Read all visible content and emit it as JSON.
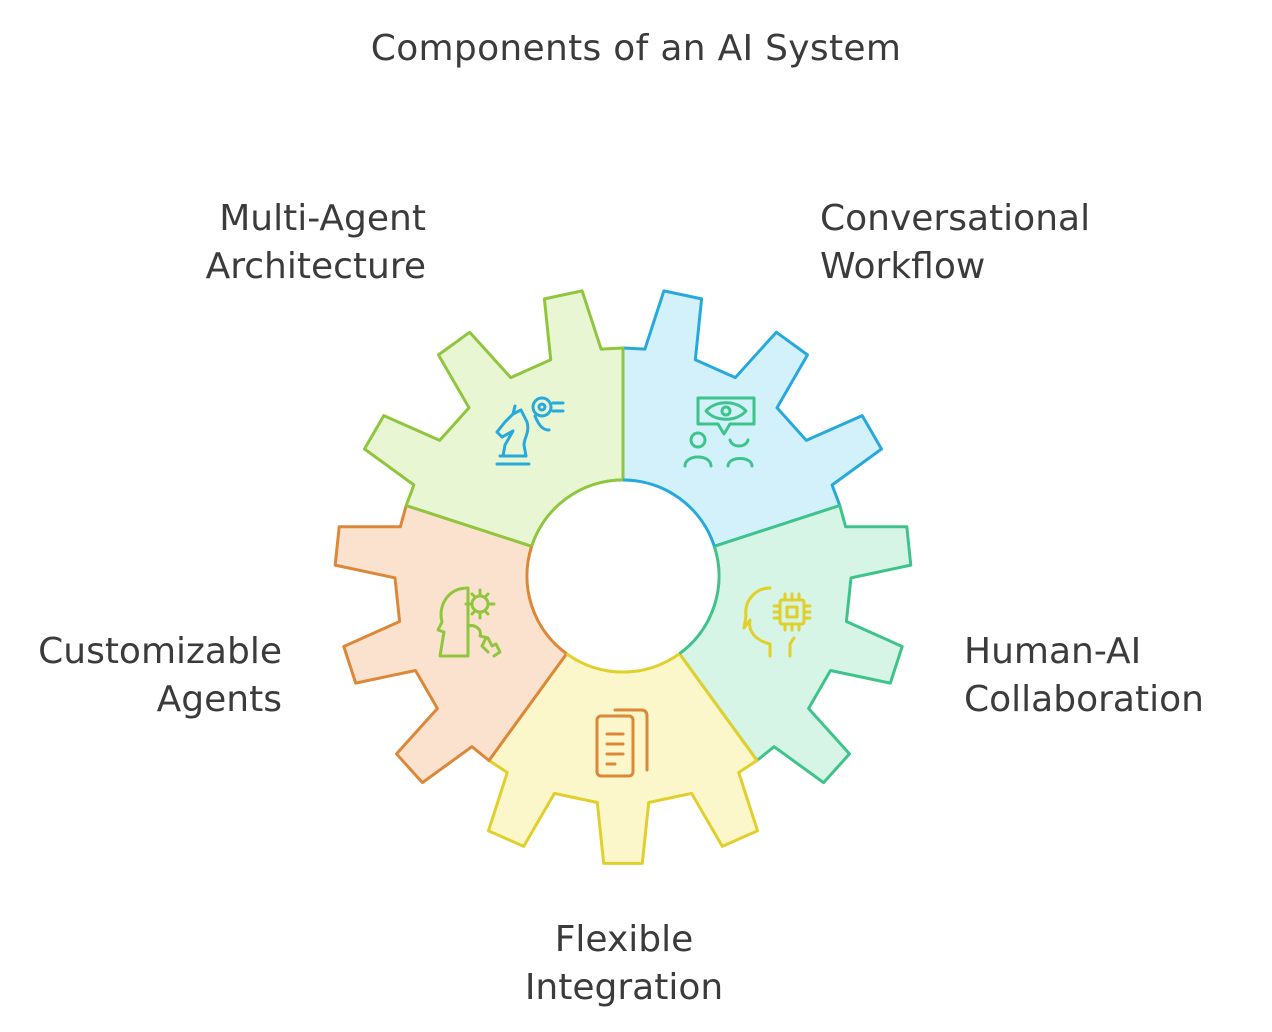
{
  "title": "Components of an AI System",
  "segments": [
    {
      "id": "multi-agent",
      "label_lines": [
        "Multi-Agent",
        "Architecture"
      ],
      "fill": "#d3f1fb",
      "stroke": "#27a9dc",
      "icon": "chess-knight-icon"
    },
    {
      "id": "conversational",
      "label_lines": [
        "Conversational",
        "Workflow"
      ],
      "fill": "#d6f5e6",
      "stroke": "#3ec48b",
      "icon": "eye-speech-people-icon"
    },
    {
      "id": "human-ai",
      "label_lines": [
        "Human-AI",
        "Collaboration"
      ],
      "fill": "#fcf7cb",
      "stroke": "#e1cf2b",
      "icon": "head-chip-icon"
    },
    {
      "id": "flexible",
      "label_lines": [
        "Flexible",
        "Integration"
      ],
      "fill": "#fbe2cf",
      "stroke": "#dd8739",
      "icon": "documents-icon"
    },
    {
      "id": "customizable",
      "label_lines": [
        "Customizable",
        "Agents"
      ],
      "fill": "#e9f6d3",
      "stroke": "#8fc63e",
      "icon": "head-gears-icon"
    }
  ]
}
